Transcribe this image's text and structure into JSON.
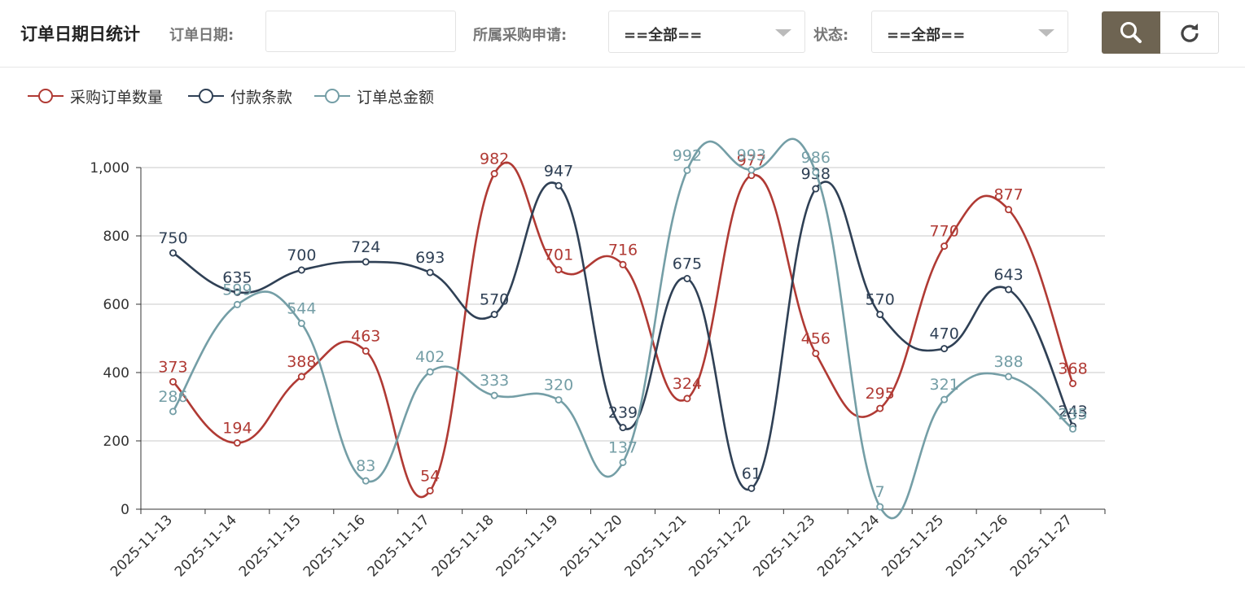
{
  "header": {
    "title": "订单日期日统计",
    "date_label": "订单日期:",
    "date_value": "",
    "purchase_label": "所属采购申请:",
    "purchase_value": "==全部==",
    "status_label": "状态:",
    "status_value": "==全部=="
  },
  "buttons": {
    "search_icon": "search-icon",
    "refresh_icon": "refresh-icon"
  },
  "colors": {
    "accent": "#6e6452",
    "series": [
      "#b03a34",
      "#2f4055",
      "#749ea6"
    ]
  },
  "chart_data": {
    "type": "line",
    "smooth": true,
    "title": "",
    "xlabel": "",
    "ylabel": "",
    "ylim": [
      0,
      1000
    ],
    "yticks": [
      0,
      200,
      400,
      600,
      800,
      1000
    ],
    "ytick_labels": [
      "0",
      "200",
      "400",
      "600",
      "800",
      "1,000"
    ],
    "grid": true,
    "legend_position": "top-left",
    "categories": [
      "2025-11-13",
      "2025-11-14",
      "2025-11-15",
      "2025-11-16",
      "2025-11-17",
      "2025-11-18",
      "2025-11-19",
      "2025-11-20",
      "2025-11-21",
      "2025-11-22",
      "2025-11-23",
      "2025-11-24",
      "2025-11-25",
      "2025-11-26",
      "2025-11-27"
    ],
    "series": [
      {
        "name": "采购订单数量",
        "color": "#b03a34",
        "values": [
          373,
          194,
          388,
          463,
          54,
          982,
          701,
          716,
          324,
          977,
          456,
          295,
          770,
          877,
          368
        ]
      },
      {
        "name": "付款条款",
        "color": "#2f4055",
        "values": [
          750,
          635,
          700,
          724,
          693,
          570,
          947,
          239,
          675,
          61,
          938,
          570,
          470,
          643,
          243
        ]
      },
      {
        "name": "订单总金额",
        "color": "#749ea6",
        "values": [
          286,
          599,
          544,
          83,
          402,
          333,
          320,
          137,
          992,
          993,
          986,
          7,
          321,
          388,
          235
        ]
      }
    ]
  }
}
